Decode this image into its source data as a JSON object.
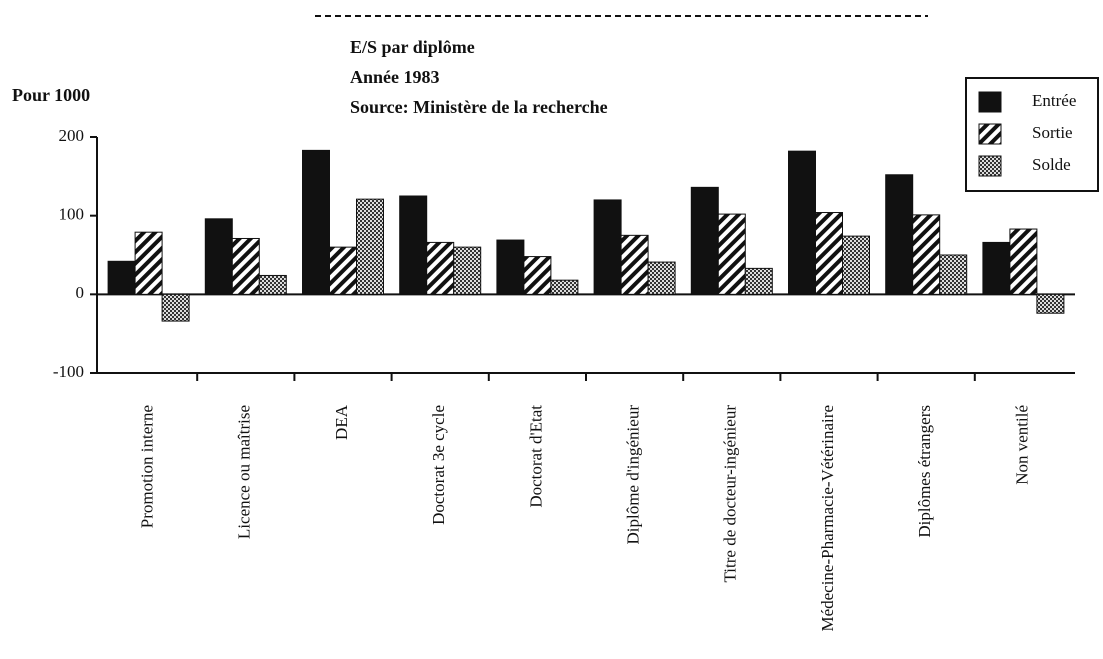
{
  "chart_data": {
    "type": "bar",
    "title": "E/S par diplôme",
    "subtitle": "Année 1983",
    "source": "Source: Ministère de la recherche",
    "y_label": "Pour 1000",
    "categories": [
      "Promotion interne",
      "Licence ou maîtrise",
      "DEA",
      "Doctorat 3e cycle",
      "Doctorat d'Etat",
      "Diplôme d'ingénieur",
      "Titre de docteur-ingénieur",
      "Médecine-Pharmacie-Vétérinaire",
      "Diplômes étrangers",
      "Non ventilé"
    ],
    "series": [
      {
        "name": "Entrée",
        "color": "#111111",
        "pattern": "solid",
        "values": [
          42,
          96,
          183,
          125,
          69,
          120,
          136,
          182,
          152,
          66
        ]
      },
      {
        "name": "Sortie",
        "color": "#111111",
        "pattern": "hatch",
        "values": [
          79,
          71,
          60,
          66,
          48,
          75,
          102,
          104,
          101,
          83
        ]
      },
      {
        "name": "Solde",
        "color": "#111111",
        "pattern": "dots",
        "values": [
          -34,
          24,
          121,
          60,
          18,
          41,
          33,
          74,
          50,
          -24
        ]
      }
    ],
    "ylim": [
      -100,
      200
    ],
    "yticks": [
      -100,
      0,
      100,
      200
    ],
    "legend": "top-right"
  }
}
